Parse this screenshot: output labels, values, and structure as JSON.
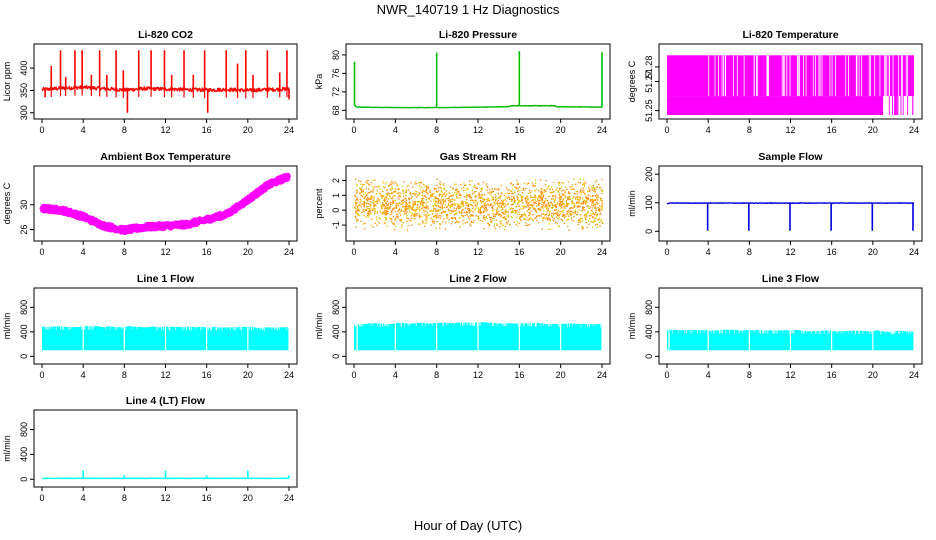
{
  "title": "NWR_140719  1 Hz Diagnostics",
  "xlabel": "Hour of Day (UTC)",
  "chart_data": [
    {
      "type": "line",
      "title": "Li-820 CO2",
      "ylabel": "Licor ppm",
      "xlim": [
        0,
        24
      ],
      "ylim": [
        295,
        445
      ],
      "yticks": [
        300,
        350,
        400
      ],
      "xticks": [
        0,
        4,
        8,
        12,
        16,
        20,
        24
      ],
      "color": "#ff0000",
      "baseline": [
        [
          0,
          352
        ],
        [
          2,
          355
        ],
        [
          4,
          357
        ],
        [
          6,
          354
        ],
        [
          8,
          351
        ],
        [
          10,
          354
        ],
        [
          12,
          353
        ],
        [
          14,
          352
        ],
        [
          16,
          351
        ],
        [
          18,
          352
        ],
        [
          20,
          350
        ],
        [
          22,
          352
        ],
        [
          24,
          353
        ]
      ],
      "noise": 4,
      "spikes": [
        [
          0.3,
          335
        ],
        [
          0.9,
          405
        ],
        [
          1.8,
          440
        ],
        [
          2.3,
          380
        ],
        [
          3.2,
          440
        ],
        [
          3.9,
          440
        ],
        [
          4.8,
          385
        ],
        [
          5.6,
          440
        ],
        [
          6.3,
          385
        ],
        [
          7.2,
          440
        ],
        [
          7.9,
          395
        ],
        [
          8.3,
          300
        ],
        [
          9.4,
          440
        ],
        [
          10.6,
          440
        ],
        [
          11.9,
          440
        ],
        [
          12.6,
          385
        ],
        [
          13.8,
          440
        ],
        [
          14.7,
          385
        ],
        [
          15.8,
          440
        ],
        [
          16.1,
          300
        ],
        [
          17.9,
          440
        ],
        [
          19.0,
          410
        ],
        [
          19.8,
          440
        ],
        [
          20.5,
          385
        ],
        [
          21.9,
          440
        ],
        [
          23.1,
          390
        ],
        [
          23.8,
          440
        ],
        [
          24.0,
          330
        ]
      ],
      "spike_style": "both"
    },
    {
      "type": "line",
      "title": "Li-820 Pressure",
      "ylabel": "kPa",
      "xlim": [
        0,
        24
      ],
      "ylim": [
        67,
        81.5
      ],
      "yticks": [
        68,
        72,
        76,
        80
      ],
      "xticks": [
        0,
        4,
        8,
        12,
        16,
        20,
        24
      ],
      "color": "#00bb00",
      "baseline": [
        [
          0,
          69.2
        ],
        [
          0.3,
          68.7
        ],
        [
          4,
          68.6
        ],
        [
          8,
          68.6
        ],
        [
          12,
          68.7
        ],
        [
          15,
          68.8
        ],
        [
          15.2,
          69.0
        ],
        [
          19.5,
          69.0
        ],
        [
          19.6,
          68.8
        ],
        [
          24,
          68.7
        ]
      ],
      "noise": 0.05,
      "spikes": [
        [
          0.05,
          78.5
        ],
        [
          8,
          80.5
        ],
        [
          16,
          80.8
        ],
        [
          24,
          80.6
        ]
      ],
      "spike_style": "up"
    },
    {
      "type": "line",
      "title": "Li-820 Temperature",
      "ylabel": "degrees C",
      "xlim": [
        0,
        24
      ],
      "ylim": [
        51.247,
        51.293
      ],
      "yticks": [
        51.25,
        51.27,
        51.28
      ],
      "xticks": [
        0,
        4,
        8,
        12,
        16,
        20,
        24
      ],
      "color": "#ff00ff",
      "levels": [
        51.26,
        51.288
      ],
      "lower_end": 21
    },
    {
      "type": "line",
      "title": "Ambient Box Temperature",
      "ylabel": "degrees C",
      "xlim": [
        0,
        24
      ],
      "ylim": [
        24.8,
        35.6
      ],
      "yticks": [
        26,
        30
      ],
      "xticks": [
        0,
        4,
        8,
        12,
        16,
        20,
        24
      ],
      "color": "#ff00ff",
      "baseline": [
        [
          0,
          29.4
        ],
        [
          2,
          29.1
        ],
        [
          4,
          28.1
        ],
        [
          6,
          26.6
        ],
        [
          8,
          25.9
        ],
        [
          10,
          26.4
        ],
        [
          12,
          26.6
        ],
        [
          14,
          26.8
        ],
        [
          16,
          27.6
        ],
        [
          18,
          28.5
        ],
        [
          20,
          30.8
        ],
        [
          22,
          33.2
        ],
        [
          24,
          34.6
        ]
      ],
      "noise": 0.35
    },
    {
      "type": "scatter",
      "title": "Gas Stream RH",
      "ylabel": "percent",
      "xlim": [
        0,
        24
      ],
      "ylim": [
        -1.8,
        2.7
      ],
      "yticks": [
        -1,
        0,
        1,
        2
      ],
      "xticks": [
        0,
        4,
        8,
        12,
        16,
        20,
        24
      ],
      "color": "#ff8c00",
      "color2": "#e6c800",
      "center": 0.45,
      "spread": 1.8
    },
    {
      "type": "line",
      "title": "Sample Flow",
      "ylabel": "ml/min",
      "xlim": [
        0,
        24
      ],
      "ylim": [
        -20,
        215
      ],
      "yticks": [
        0,
        100,
        200
      ],
      "xticks": [
        0,
        4,
        8,
        12,
        16,
        20,
        24
      ],
      "color": "#0000dd",
      "baseline": [
        [
          0,
          95
        ],
        [
          0.2,
          99
        ],
        [
          24,
          99
        ]
      ],
      "noise": 0.8,
      "spikes": [
        [
          3.95,
          2
        ],
        [
          7.95,
          2
        ],
        [
          11.95,
          2
        ],
        [
          15.95,
          2
        ],
        [
          19.95,
          2
        ],
        [
          23.9,
          2
        ]
      ],
      "spike_style": "down"
    },
    {
      "type": "line",
      "title": "Line 1 Flow",
      "ylabel": "ml/min",
      "xlim": [
        0,
        24
      ],
      "ylim": [
        -60,
        1050
      ],
      "yticks": [
        0,
        400,
        800
      ],
      "xticks": [
        0,
        4,
        8,
        12,
        16,
        20,
        24
      ],
      "color": "#00ffff",
      "band": [
        [
          0,
          100,
          500
        ],
        [
          24,
          100,
          480
        ]
      ],
      "gaps": [
        4,
        8,
        12,
        16,
        20,
        24
      ]
    },
    {
      "type": "line",
      "title": "Line 2 Flow",
      "ylabel": "ml/min",
      "xlim": [
        0,
        24
      ],
      "ylim": [
        -60,
        1050
      ],
      "yticks": [
        0,
        400,
        800
      ],
      "xticks": [
        0,
        4,
        8,
        12,
        16,
        20,
        24
      ],
      "color": "#00ffff",
      "band": [
        [
          0,
          100,
          540
        ],
        [
          12,
          100,
          560
        ],
        [
          24,
          100,
          530
        ]
      ],
      "gaps": [
        0.3,
        4,
        8,
        12,
        16,
        20,
        24
      ]
    },
    {
      "type": "line",
      "title": "Line 3 Flow",
      "ylabel": "ml/min",
      "xlim": [
        0,
        24
      ],
      "ylim": [
        -60,
        1050
      ],
      "yticks": [
        0,
        400,
        800
      ],
      "xticks": [
        0,
        4,
        8,
        12,
        16,
        20,
        24
      ],
      "color": "#00ffff",
      "band": [
        [
          0,
          100,
          440
        ],
        [
          24,
          100,
          420
        ]
      ],
      "gaps": [
        0.2,
        4,
        8,
        12,
        16,
        20,
        24
      ]
    },
    {
      "type": "line",
      "title": "Line 4 (LT) Flow",
      "ylabel": "ml/min",
      "xlim": [
        0,
        24
      ],
      "ylim": [
        -60,
        1050
      ],
      "yticks": [
        0,
        400,
        800
      ],
      "xticks": [
        0,
        4,
        8,
        12,
        16,
        20,
        24
      ],
      "color": "#00ffff",
      "baseline": [
        [
          0,
          15
        ],
        [
          24,
          15
        ]
      ],
      "noise": 3,
      "spikes": [
        [
          4,
          140
        ],
        [
          8,
          60
        ],
        [
          12,
          140
        ],
        [
          16,
          60
        ],
        [
          20,
          140
        ],
        [
          24,
          60
        ]
      ],
      "spike_style": "up"
    }
  ]
}
